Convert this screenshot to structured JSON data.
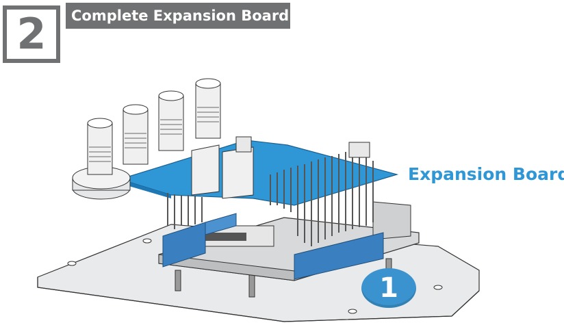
{
  "header": {
    "step_number": "2",
    "title": "Complete Expansion Board"
  },
  "callout": {
    "label": "Expansion Board",
    "color": "#2f97d6"
  },
  "badge": {
    "number": "1",
    "color": "#3a93cf"
  },
  "colors": {
    "header_gray": "#707173",
    "board_blue": "#2f97d6",
    "header_pin_blue": "#3a7fc0"
  }
}
